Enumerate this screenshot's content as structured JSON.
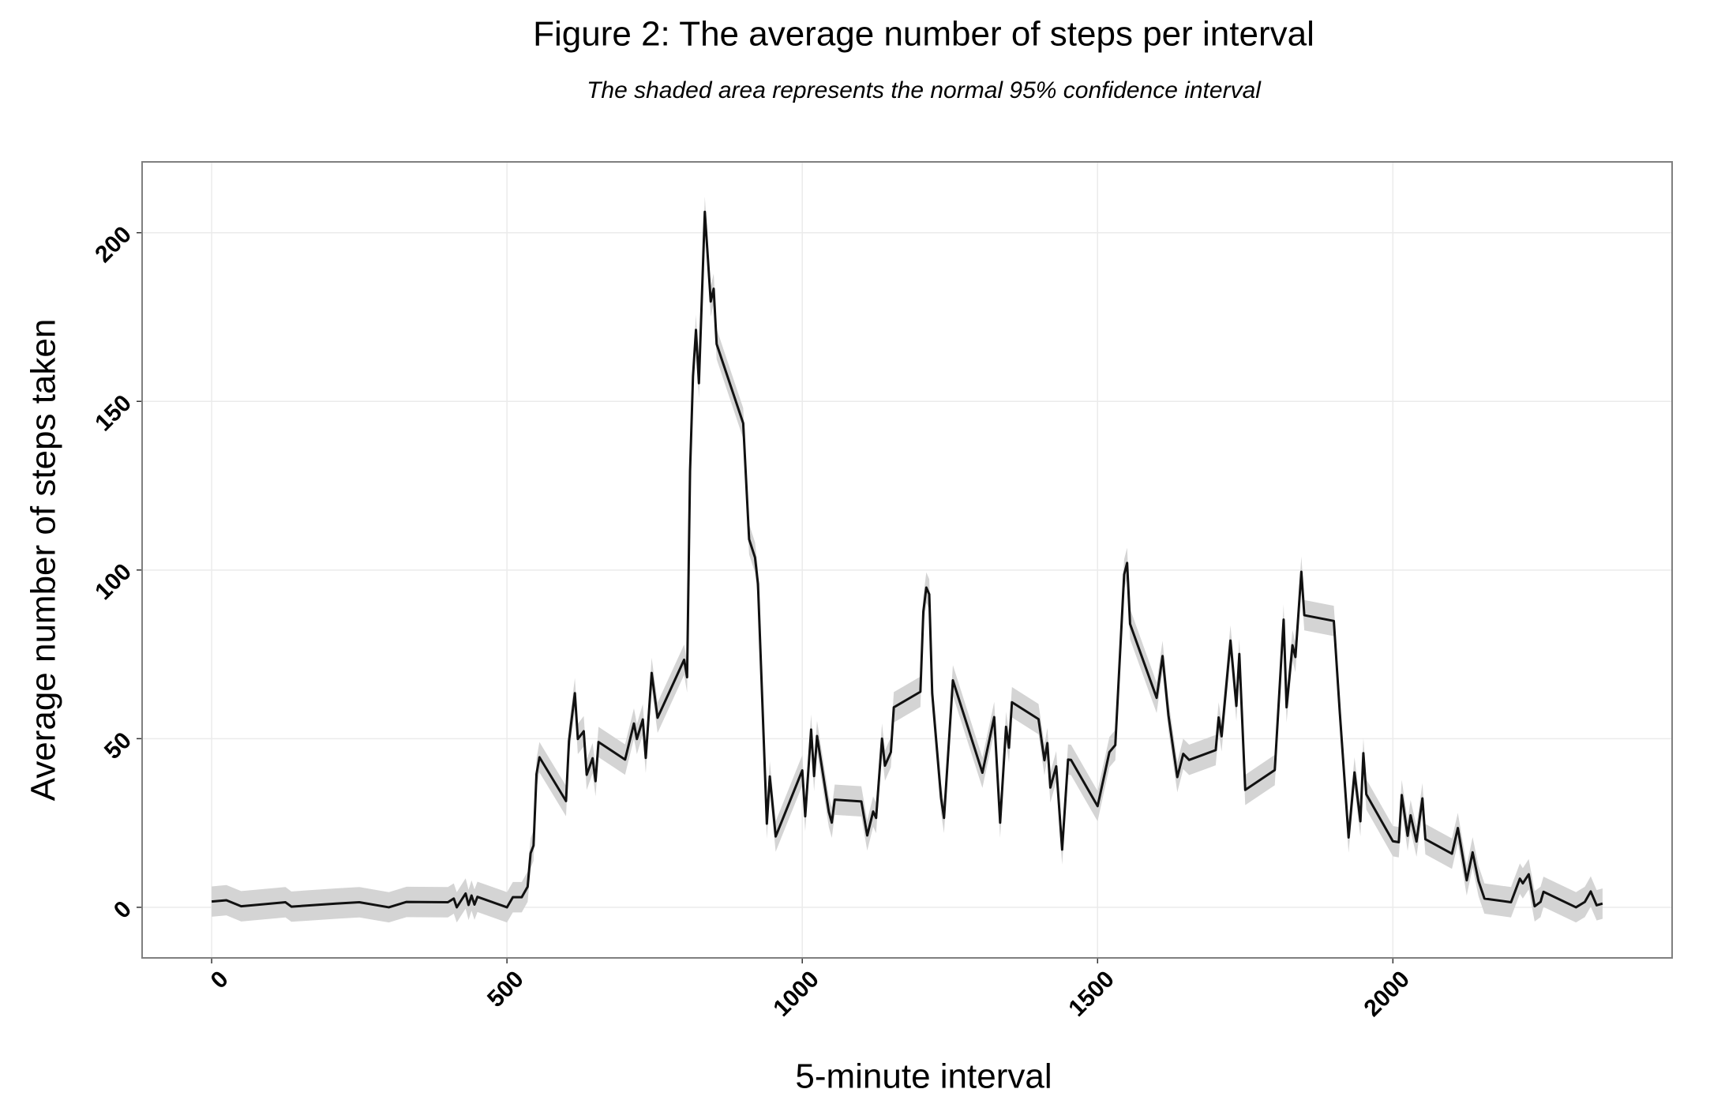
{
  "chart_data": {
    "type": "line",
    "title": "Figure 2: The average number of steps per interval",
    "subtitle": "The shaded area represents the normal 95% confidence interval",
    "x_label": "5-minute interval",
    "y_label": "Average number of steps taken",
    "color": "#111111",
    "band_color": "#d4d4d4",
    "grid": true,
    "xlim": [
      -117.75,
      2472.75
    ],
    "ylim": [
      -15,
      221
    ],
    "xticks": [
      0,
      500,
      1000,
      1500,
      2000
    ],
    "yticks": [
      0,
      50,
      100,
      150,
      200
    ],
    "x": [
      0,
      25,
      50,
      125,
      135,
      210,
      250,
      300,
      330,
      400,
      410,
      415,
      430,
      435,
      440,
      445,
      450,
      500,
      510,
      525,
      535,
      540,
      545,
      550,
      555,
      600,
      605,
      615,
      620,
      630,
      635,
      645,
      650,
      655,
      700,
      715,
      720,
      730,
      735,
      745,
      755,
      800,
      805,
      810,
      815,
      820,
      825,
      835,
      845,
      850,
      855,
      900,
      910,
      920,
      925,
      940,
      945,
      955,
      1000,
      1005,
      1015,
      1020,
      1025,
      1045,
      1050,
      1055,
      1100,
      1110,
      1120,
      1125,
      1135,
      1140,
      1150,
      1155,
      1200,
      1205,
      1210,
      1215,
      1220,
      1235,
      1240,
      1255,
      1305,
      1325,
      1335,
      1345,
      1350,
      1355,
      1400,
      1410,
      1415,
      1420,
      1430,
      1440,
      1450,
      1455,
      1500,
      1520,
      1530,
      1545,
      1550,
      1555,
      1600,
      1610,
      1620,
      1635,
      1645,
      1655,
      1700,
      1705,
      1710,
      1725,
      1735,
      1740,
      1750,
      1800,
      1815,
      1820,
      1830,
      1835,
      1845,
      1850,
      1900,
      1910,
      1925,
      1935,
      1945,
      1950,
      1955,
      2000,
      2010,
      2015,
      2025,
      2030,
      2040,
      2050,
      2055,
      2100,
      2110,
      2125,
      2135,
      2145,
      2155,
      2200,
      2215,
      2220,
      2230,
      2240,
      2250,
      2255,
      2310,
      2325,
      2335,
      2345,
      2355
    ],
    "values": [
      1.7,
      2.1,
      0.3,
      1.5,
      0.2,
      1.1,
      1.5,
      0,
      1.6,
      1.5,
      2.6,
      0,
      4.1,
      0.7,
      3.5,
      0.8,
      3.1,
      0,
      3,
      3,
      6.1,
      16,
      18.3,
      39.5,
      44.5,
      31.5,
      49.3,
      63.5,
      49.9,
      52.2,
      39.3,
      44.2,
      37.4,
      49,
      43.8,
      54.5,
      49.9,
      55.7,
      44.3,
      69.5,
      56.2,
      73.4,
      68.2,
      129.4,
      157.5,
      171.2,
      155.4,
      206.2,
      179.6,
      183.4,
      167,
      143.5,
      109.1,
      103.7,
      95.9,
      24.8,
      38.8,
      21,
      40.6,
      27,
      52.7,
      38.9,
      50.8,
      28.3,
      25.1,
      31.9,
      31.4,
      21.3,
      28.4,
      26.5,
      50,
      42,
      46,
      59.3,
      63.9,
      87.7,
      94.8,
      92.8,
      63.4,
      32.4,
      26.5,
      67.3,
      39.9,
      56.4,
      25.1,
      53.5,
      47.3,
      60.8,
      55.8,
      43.6,
      48.7,
      35.5,
      41.8,
      17.1,
      43.8,
      43.7,
      30,
      46,
      48.1,
      98.7,
      102.1,
      84,
      62.1,
      74.5,
      56.9,
      38.6,
      45.5,
      43.7,
      46.6,
      56.3,
      50.7,
      79.1,
      59.7,
      75.1,
      34.8,
      40.7,
      85.3,
      59.3,
      77.7,
      74.2,
      99.5,
      86.6,
      84.9,
      58,
      20.7,
      40,
      25.5,
      45.7,
      33.5,
      19.6,
      19.3,
      33.3,
      21.2,
      27.3,
      19.5,
      32.3,
      20.2,
      15.9,
      23.5,
      8,
      16.3,
      7.8,
      2.6,
      1.5,
      8.5,
      7.1,
      9.8,
      0.3,
      1.6,
      4.6,
      0,
      1.6,
      4.7,
      0.6,
      1.1
    ],
    "ci_lower": [
      -2.8,
      -2.4,
      -4.2,
      -3,
      -4.3,
      -3.4,
      -3,
      -4.5,
      -2.9,
      -3,
      -1.9,
      -4.5,
      -0.4,
      -3.8,
      -1,
      -3.7,
      -1.4,
      -4.5,
      -1.5,
      -1.5,
      1.6,
      11.5,
      13.8,
      35,
      40,
      27,
      44.8,
      59,
      45.4,
      47.7,
      34.8,
      39.7,
      32.9,
      44.5,
      39.3,
      50,
      45.4,
      51.2,
      39.8,
      65,
      51.7,
      68.9,
      63.7,
      124.9,
      153,
      166.7,
      150.9,
      201.7,
      175.1,
      178.9,
      162.5,
      139,
      104.6,
      99.2,
      91.4,
      20.3,
      34.3,
      16.5,
      36.1,
      22.5,
      48.2,
      34.4,
      46.3,
      23.8,
      20.6,
      27.4,
      26.9,
      16.8,
      23.9,
      22,
      45.5,
      37.5,
      41.5,
      54.8,
      59.4,
      83.2,
      90.3,
      88.3,
      58.9,
      27.9,
      22,
      62.8,
      35.4,
      51.9,
      20.6,
      49,
      42.8,
      56.3,
      51.3,
      39.1,
      44.2,
      31,
      37.3,
      12.6,
      39.3,
      39.2,
      25.5,
      41.5,
      43.6,
      94.2,
      97.6,
      79.5,
      57.6,
      70,
      52.4,
      34.1,
      41,
      39.2,
      42.1,
      51.8,
      46.2,
      74.6,
      55.2,
      70.6,
      30.3,
      36.2,
      80.8,
      54.8,
      73.2,
      69.7,
      95,
      82.1,
      80.4,
      53.5,
      16.2,
      35.5,
      21,
      41.2,
      29,
      15.1,
      14.8,
      28.8,
      16.7,
      22.8,
      15,
      27.8,
      15.7,
      11.4,
      19,
      3.5,
      11.8,
      3.3,
      -1.9,
      -3,
      4,
      2.6,
      5.3,
      -4.2,
      -2.9,
      0.1,
      -4.5,
      -2.9,
      0.2,
      -3.9,
      -3.4
    ],
    "ci_upper": [
      6.2,
      6.6,
      4.8,
      6,
      4.7,
      5.6,
      6,
      4.5,
      6.1,
      6,
      7.1,
      4.5,
      8.6,
      5.2,
      8,
      5.3,
      7.6,
      4.5,
      7.5,
      7.5,
      10.6,
      20.5,
      22.8,
      44,
      49,
      36,
      53.8,
      68,
      54.4,
      56.7,
      43.8,
      48.7,
      41.9,
      53.5,
      48.3,
      59,
      54.4,
      60.2,
      48.8,
      74,
      60.7,
      77.9,
      72.7,
      133.9,
      162,
      175.7,
      159.9,
      210.7,
      184.1,
      187.9,
      171.5,
      148,
      113.6,
      108.2,
      100.4,
      29.3,
      43.3,
      25.5,
      45.1,
      31.5,
      57.2,
      43.4,
      55.3,
      32.8,
      29.6,
      36.4,
      35.9,
      25.8,
      32.9,
      31,
      54.5,
      46.5,
      50.5,
      63.8,
      68.4,
      92.2,
      99.3,
      97.3,
      67.9,
      36.9,
      31,
      71.8,
      44.4,
      60.9,
      29.6,
      58,
      51.8,
      65.3,
      60.3,
      48.1,
      53.2,
      40,
      46.3,
      21.6,
      48.3,
      48.2,
      34.5,
      50.5,
      52.6,
      103.2,
      106.6,
      88.5,
      66.6,
      79,
      61.4,
      43.1,
      50,
      48.2,
      51.1,
      60.8,
      55.2,
      83.6,
      64.2,
      79.6,
      39.3,
      45.2,
      89.8,
      63.8,
      82.2,
      78.7,
      104,
      91.1,
      89.4,
      62.5,
      25.2,
      44.5,
      30,
      50.2,
      38,
      24.1,
      23.8,
      37.8,
      25.7,
      31.8,
      24,
      36.8,
      24.7,
      20.4,
      28,
      12.5,
      20.8,
      12.3,
      7.1,
      6,
      13,
      11.6,
      14.3,
      4.8,
      6.1,
      9.1,
      4.5,
      6.1,
      9.2,
      5.1,
      5.6
    ]
  }
}
